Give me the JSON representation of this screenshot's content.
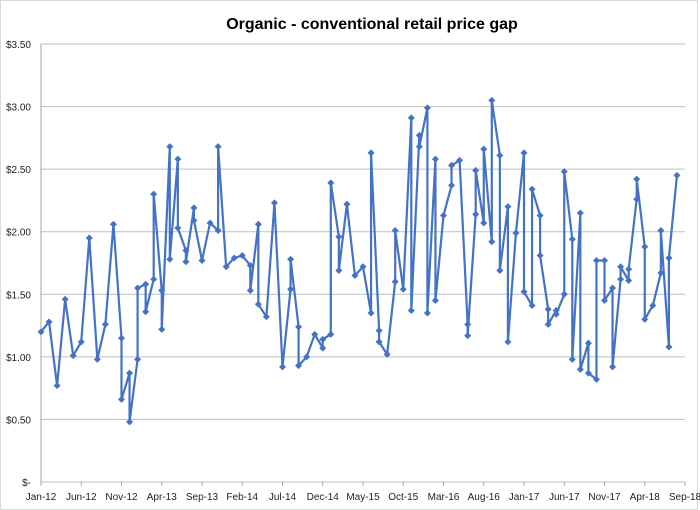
{
  "chart_data": {
    "type": "line",
    "title": "Organic - conventional  retail price gap",
    "xlabel": "",
    "ylabel": "",
    "ylim": [
      0,
      3.5
    ],
    "grid": "horizontal",
    "legend": "none",
    "series_color": "#4472C4",
    "marker": "diamond",
    "y_ticks": [
      "$-",
      "$0.50",
      "$1.00",
      "$1.50",
      "$2.00",
      "$2.50",
      "$3.00",
      "$3.50"
    ],
    "y_tick_values": [
      0,
      0.5,
      1,
      1.5,
      2,
      2.5,
      3,
      3.5
    ],
    "x_ticks": [
      "Jan-12",
      "Jun-12",
      "Nov-12",
      "Apr-13",
      "Sep-13",
      "Feb-14",
      "Jul-14",
      "Dec-14",
      "May-15",
      "Oct-15",
      "Mar-16",
      "Aug-16",
      "Jan-17",
      "Jun-17",
      "Nov-17",
      "Apr-18",
      "Sep-18"
    ],
    "x_tick_values": [
      "2012-01",
      "2012-06",
      "2012-11",
      "2013-04",
      "2013-09",
      "2014-02",
      "2014-07",
      "2014-12",
      "2015-05",
      "2015-10",
      "2016-03",
      "2016-08",
      "2017-01",
      "2017-06",
      "2017-11",
      "2018-04",
      "2018-09"
    ],
    "points": [
      [
        "2012-01",
        1.2
      ],
      [
        "2012-02",
        1.28
      ],
      [
        "2012-03",
        0.77
      ],
      [
        "2012-04",
        1.46
      ],
      [
        "2012-05",
        1.01
      ],
      [
        "2012-06",
        1.12
      ],
      [
        "2012-07",
        1.95
      ],
      [
        "2012-08",
        0.98
      ],
      [
        "2012-09",
        1.26
      ],
      [
        "2012-10",
        2.06
      ],
      [
        "2012-11",
        1.15
      ],
      [
        "2012-11",
        0.66
      ],
      [
        "2012-12",
        0.87
      ],
      [
        "2012-12",
        0.48
      ],
      [
        "2013-01",
        0.98
      ],
      [
        "2013-01",
        1.55
      ],
      [
        "2013-02",
        1.58
      ],
      [
        "2013-02",
        1.36
      ],
      [
        "2013-03",
        1.62
      ],
      [
        "2013-03",
        2.3
      ],
      [
        "2013-04",
        1.53
      ],
      [
        "2013-04",
        1.22
      ],
      [
        "2013-05",
        2.68
      ],
      [
        "2013-05",
        1.78
      ],
      [
        "2013-06",
        2.58
      ],
      [
        "2013-06",
        2.03
      ],
      [
        "2013-07",
        1.85
      ],
      [
        "2013-07",
        1.76
      ],
      [
        "2013-08",
        2.19
      ],
      [
        "2013-08",
        2.09
      ],
      [
        "2013-09",
        1.77
      ],
      [
        "2013-10",
        2.07
      ],
      [
        "2013-11",
        2.01
      ],
      [
        "2013-11",
        2.68
      ],
      [
        "2013-12",
        1.72
      ],
      [
        "2014-01",
        1.79
      ],
      [
        "2014-02",
        1.81
      ],
      [
        "2014-03",
        1.73
      ],
      [
        "2014-03",
        1.53
      ],
      [
        "2014-04",
        2.06
      ],
      [
        "2014-04",
        1.42
      ],
      [
        "2014-05",
        1.32
      ],
      [
        "2014-06",
        2.23
      ],
      [
        "2014-07",
        0.92
      ],
      [
        "2014-08",
        1.54
      ],
      [
        "2014-08",
        1.78
      ],
      [
        "2014-09",
        1.24
      ],
      [
        "2014-09",
        0.93
      ],
      [
        "2014-10",
        1.0
      ],
      [
        "2014-11",
        1.18
      ],
      [
        "2014-12",
        1.07
      ],
      [
        "2014-12",
        1.14
      ],
      [
        "2015-01",
        1.18
      ],
      [
        "2015-01",
        2.39
      ],
      [
        "2015-02",
        1.96
      ],
      [
        "2015-02",
        1.69
      ],
      [
        "2015-03",
        2.22
      ],
      [
        "2015-04",
        1.65
      ],
      [
        "2015-05",
        1.72
      ],
      [
        "2015-06",
        1.35
      ],
      [
        "2015-06",
        2.63
      ],
      [
        "2015-07",
        1.21
      ],
      [
        "2015-07",
        1.12
      ],
      [
        "2015-08",
        1.02
      ],
      [
        "2015-09",
        1.6
      ],
      [
        "2015-09",
        2.01
      ],
      [
        "2015-10",
        1.54
      ],
      [
        "2015-11",
        2.91
      ],
      [
        "2015-11",
        1.37
      ],
      [
        "2015-12",
        2.77
      ],
      [
        "2015-12",
        2.68
      ],
      [
        "2016-01",
        2.99
      ],
      [
        "2016-01",
        1.35
      ],
      [
        "2016-02",
        2.58
      ],
      [
        "2016-02",
        1.45
      ],
      [
        "2016-03",
        2.13
      ],
      [
        "2016-04",
        2.37
      ],
      [
        "2016-04",
        2.53
      ],
      [
        "2016-05",
        2.57
      ],
      [
        "2016-06",
        1.26
      ],
      [
        "2016-06",
        1.17
      ],
      [
        "2016-07",
        2.14
      ],
      [
        "2016-07",
        2.49
      ],
      [
        "2016-08",
        2.07
      ],
      [
        "2016-08",
        2.66
      ],
      [
        "2016-09",
        1.92
      ],
      [
        "2016-09",
        3.05
      ],
      [
        "2016-10",
        2.61
      ],
      [
        "2016-10",
        1.69
      ],
      [
        "2016-11",
        2.2
      ],
      [
        "2016-11",
        1.12
      ],
      [
        "2016-12",
        1.99
      ],
      [
        "2017-01",
        2.63
      ],
      [
        "2017-01",
        1.52
      ],
      [
        "2017-02",
        1.41
      ],
      [
        "2017-02",
        2.34
      ],
      [
        "2017-03",
        2.13
      ],
      [
        "2017-03",
        1.81
      ],
      [
        "2017-04",
        1.38
      ],
      [
        "2017-04",
        1.26
      ],
      [
        "2017-05",
        1.37
      ],
      [
        "2017-05",
        1.34
      ],
      [
        "2017-06",
        1.5
      ],
      [
        "2017-06",
        2.48
      ],
      [
        "2017-07",
        1.94
      ],
      [
        "2017-07",
        0.98
      ],
      [
        "2017-08",
        2.15
      ],
      [
        "2017-08",
        0.9
      ],
      [
        "2017-09",
        1.11
      ],
      [
        "2017-09",
        0.87
      ],
      [
        "2017-10",
        0.82
      ],
      [
        "2017-10",
        1.77
      ],
      [
        "2017-11",
        1.77
      ],
      [
        "2017-11",
        1.45
      ],
      [
        "2017-12",
        1.55
      ],
      [
        "2017-12",
        0.92
      ],
      [
        "2018-01",
        1.62
      ],
      [
        "2018-01",
        1.72
      ],
      [
        "2018-02",
        1.61
      ],
      [
        "2018-02",
        1.7
      ],
      [
        "2018-03",
        2.26
      ],
      [
        "2018-03",
        2.42
      ],
      [
        "2018-04",
        1.88
      ],
      [
        "2018-04",
        1.3
      ],
      [
        "2018-05",
        1.41
      ],
      [
        "2018-06",
        1.67
      ],
      [
        "2018-06",
        2.01
      ],
      [
        "2018-07",
        1.08
      ],
      [
        "2018-07",
        1.79
      ],
      [
        "2018-08",
        2.45
      ]
    ]
  }
}
